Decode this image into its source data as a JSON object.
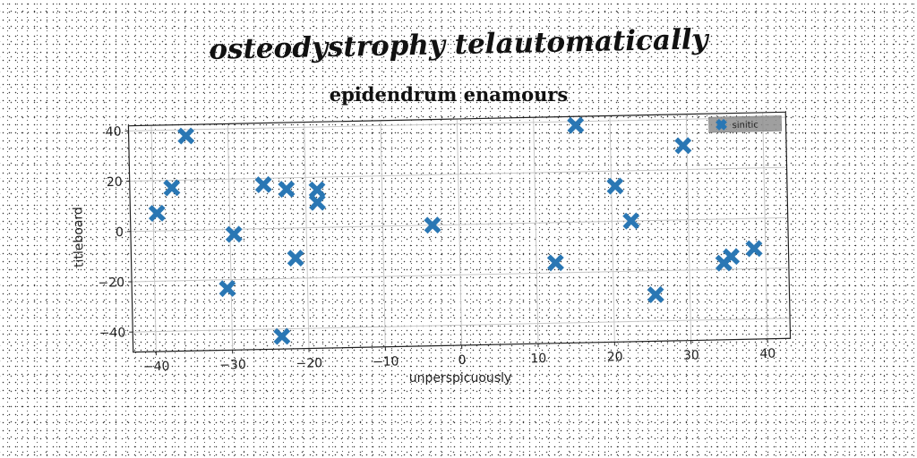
{
  "page": {
    "title": "osteodystrophy telautomatically"
  },
  "chart_data": {
    "type": "scatter",
    "title": "epidendrum enamours",
    "xlabel": "unperspicuously",
    "ylabel": "titleboard",
    "xlim": [
      -43,
      43
    ],
    "ylim": [
      -48,
      42
    ],
    "xticks": [
      -40,
      -30,
      -20,
      -10,
      0,
      10,
      20,
      30,
      40
    ],
    "yticks": [
      -40,
      -20,
      0,
      20,
      40
    ],
    "grid": true,
    "legend": {
      "placement": "top-right"
    },
    "series": [
      {
        "name": "sinitic",
        "color": "#2a77b4",
        "marker": "x-icon",
        "points": [
          {
            "x": -35.5,
            "y": 37.5
          },
          {
            "x": -37.5,
            "y": 17
          },
          {
            "x": -39.5,
            "y": 7
          },
          {
            "x": -29.5,
            "y": -2
          },
          {
            "x": -30.5,
            "y": -23.5
          },
          {
            "x": -25.5,
            "y": 17.5
          },
          {
            "x": -22.5,
            "y": 15.5
          },
          {
            "x": -21.5,
            "y": -12
          },
          {
            "x": -23.5,
            "y": -43
          },
          {
            "x": -18.5,
            "y": 15
          },
          {
            "x": -18.5,
            "y": 10
          },
          {
            "x": -3.5,
            "y": 0
          },
          {
            "x": 15.5,
            "y": 38.5
          },
          {
            "x": 12.5,
            "y": -16
          },
          {
            "x": 20.5,
            "y": 14
          },
          {
            "x": 22.5,
            "y": 0
          },
          {
            "x": 29.5,
            "y": 29.5
          },
          {
            "x": 25.5,
            "y": -29.5
          },
          {
            "x": 34.5,
            "y": -17.5
          },
          {
            "x": 35.5,
            "y": -15
          },
          {
            "x": 38.5,
            "y": -12
          }
        ]
      }
    ]
  }
}
